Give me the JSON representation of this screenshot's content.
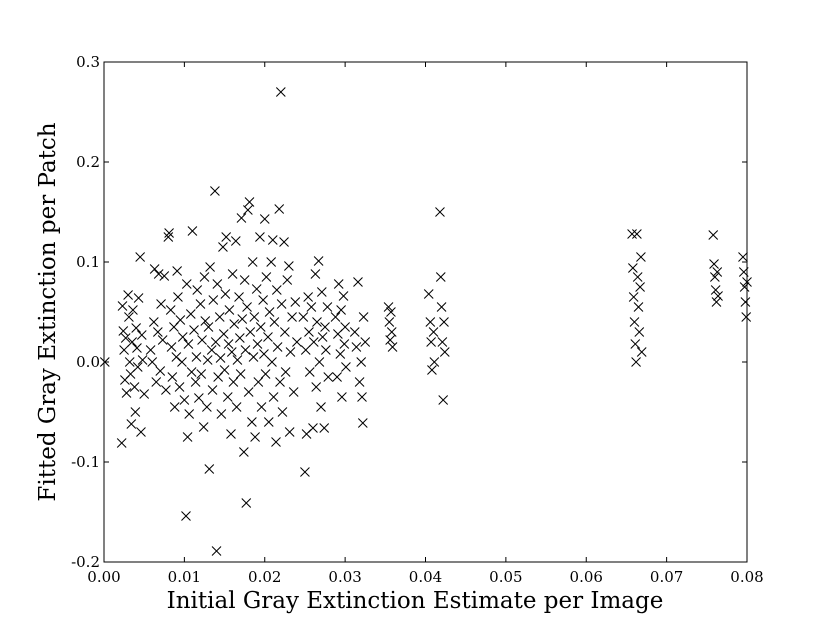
{
  "chart_data": {
    "type": "scatter",
    "title": "",
    "xlabel": "Initial Gray Extinction Estimate per Image",
    "ylabel": "Fitted Gray Extinction per Patch",
    "xlim": [
      0.0,
      0.08
    ],
    "ylim": [
      -0.2,
      0.3
    ],
    "x_ticks": [
      0.0,
      0.01,
      0.02,
      0.03,
      0.04,
      0.05,
      0.06,
      0.07,
      0.08
    ],
    "x_tick_labels": [
      "0.00",
      "0.01",
      "0.02",
      "0.03",
      "0.04",
      "0.05",
      "0.06",
      "0.07",
      "0.08"
    ],
    "y_ticks": [
      -0.2,
      -0.1,
      0.0,
      0.1,
      0.2,
      0.3
    ],
    "y_tick_labels": [
      "-0.2",
      "-0.1",
      "0.0",
      "0.1",
      "0.2",
      "0.3"
    ],
    "grid": false,
    "marker": "x",
    "marker_color": "#000000",
    "series": [
      {
        "points": [
          [
            0.0001,
            0.0
          ],
          [
            0.0022,
            -0.081
          ],
          [
            0.0023,
            0.056
          ],
          [
            0.0024,
            0.031
          ],
          [
            0.0025,
            0.012
          ],
          [
            0.0026,
            -0.018
          ],
          [
            0.0027,
            0.024
          ],
          [
            0.0028,
            -0.031
          ],
          [
            0.003,
            0.067
          ],
          [
            0.0031,
            0.045
          ],
          [
            0.0032,
            0.0
          ],
          [
            0.0033,
            -0.012
          ],
          [
            0.0034,
            -0.062
          ],
          [
            0.0035,
            0.02
          ],
          [
            0.0036,
            0.052
          ],
          [
            0.0038,
            -0.025
          ],
          [
            0.0039,
            -0.05
          ],
          [
            0.004,
            0.034
          ],
          [
            0.0041,
            0.014
          ],
          [
            0.0042,
            -0.005
          ],
          [
            0.0043,
            0.064
          ],
          [
            0.0045,
            0.105
          ],
          [
            0.0046,
            -0.07
          ],
          [
            0.0047,
            0.027
          ],
          [
            0.0048,
            0.002
          ],
          [
            0.005,
            -0.032
          ],
          [
            0.0058,
            0.012
          ],
          [
            0.006,
            0.0
          ],
          [
            0.0062,
            0.04
          ],
          [
            0.0063,
            0.093
          ],
          [
            0.0065,
            -0.02
          ],
          [
            0.0067,
            0.03
          ],
          [
            0.0068,
            0.088
          ],
          [
            0.007,
            -0.009
          ],
          [
            0.0071,
            0.058
          ],
          [
            0.0073,
            0.022
          ],
          [
            0.0075,
            0.086
          ],
          [
            0.0077,
            -0.028
          ],
          [
            0.008,
            0.125
          ],
          [
            0.0081,
            0.129
          ],
          [
            0.0083,
            0.052
          ],
          [
            0.0084,
            0.015
          ],
          [
            0.0085,
            -0.015
          ],
          [
            0.0087,
            0.035
          ],
          [
            0.0088,
            -0.045
          ],
          [
            0.009,
            0.005
          ],
          [
            0.0091,
            0.091
          ],
          [
            0.0092,
            0.065
          ],
          [
            0.0094,
            -0.025
          ],
          [
            0.0095,
            0.042
          ],
          [
            0.0097,
            0.0
          ],
          [
            0.0098,
            0.025
          ],
          [
            0.01,
            -0.038
          ],
          [
            0.0102,
            -0.154
          ],
          [
            0.0103,
            0.078
          ],
          [
            0.0104,
            -0.075
          ],
          [
            0.0105,
            0.018
          ],
          [
            0.0106,
            -0.052
          ],
          [
            0.0108,
            0.048
          ],
          [
            0.0109,
            -0.01
          ],
          [
            0.011,
            0.131
          ],
          [
            0.0112,
            0.032
          ],
          [
            0.0114,
            -0.02
          ],
          [
            0.0115,
            0.005
          ],
          [
            0.0116,
            0.072
          ],
          [
            0.0118,
            -0.036
          ],
          [
            0.012,
            0.058
          ],
          [
            0.0121,
            -0.012
          ],
          [
            0.0122,
            0.022
          ],
          [
            0.0124,
            -0.065
          ],
          [
            0.0125,
            0.085
          ],
          [
            0.0126,
            0.041
          ],
          [
            0.0128,
            -0.045
          ],
          [
            0.0129,
            0.002
          ],
          [
            0.013,
            0.035
          ],
          [
            0.0131,
            -0.107
          ],
          [
            0.0132,
            0.095
          ],
          [
            0.0134,
            0.012
          ],
          [
            0.0135,
            -0.028
          ],
          [
            0.0136,
            0.062
          ],
          [
            0.0138,
            0.171
          ],
          [
            0.0139,
            0.02
          ],
          [
            0.014,
            -0.189
          ],
          [
            0.0141,
            0.078
          ],
          [
            0.0142,
            -0.015
          ],
          [
            0.0144,
            0.045
          ],
          [
            0.0145,
            0.004
          ],
          [
            0.0146,
            -0.052
          ],
          [
            0.0148,
            0.115
          ],
          [
            0.0149,
            0.028
          ],
          [
            0.015,
            -0.008
          ],
          [
            0.0151,
            0.068
          ],
          [
            0.0152,
            0.125
          ],
          [
            0.0154,
            -0.035
          ],
          [
            0.0155,
            0.018
          ],
          [
            0.0156,
            0.052
          ],
          [
            0.0158,
            -0.072
          ],
          [
            0.0159,
            0.01
          ],
          [
            0.016,
            0.088
          ],
          [
            0.0161,
            -0.02
          ],
          [
            0.0162,
            0.038
          ],
          [
            0.0164,
            0.121
          ],
          [
            0.0165,
            -0.045
          ],
          [
            0.0166,
            0.002
          ],
          [
            0.0168,
            0.065
          ],
          [
            0.0169,
            0.024
          ],
          [
            0.017,
            -0.012
          ],
          [
            0.0171,
            0.144
          ],
          [
            0.0172,
            0.043
          ],
          [
            0.0174,
            -0.09
          ],
          [
            0.0175,
            0.082
          ],
          [
            0.0176,
            0.012
          ],
          [
            0.0177,
            -0.141
          ],
          [
            0.0178,
            0.055
          ],
          [
            0.0179,
            0.152
          ],
          [
            0.018,
            -0.03
          ],
          [
            0.0181,
            0.16
          ],
          [
            0.0182,
            0.03
          ],
          [
            0.0184,
            -0.06
          ],
          [
            0.0185,
            0.1
          ],
          [
            0.0186,
            0.005
          ],
          [
            0.0187,
            0.045
          ],
          [
            0.0188,
            -0.075
          ],
          [
            0.019,
            0.073
          ],
          [
            0.0191,
            0.018
          ],
          [
            0.0192,
            -0.02
          ],
          [
            0.0194,
            0.125
          ],
          [
            0.0195,
            0.035
          ],
          [
            0.0196,
            -0.045
          ],
          [
            0.0198,
            0.062
          ],
          [
            0.0199,
            0.008
          ],
          [
            0.02,
            0.143
          ],
          [
            0.0201,
            -0.012
          ],
          [
            0.0202,
            0.085
          ],
          [
            0.0204,
            0.025
          ],
          [
            0.0205,
            -0.06
          ],
          [
            0.0206,
            0.05
          ],
          [
            0.0208,
            0.1
          ],
          [
            0.0209,
            0.0
          ],
          [
            0.021,
            0.122
          ],
          [
            0.0211,
            -0.035
          ],
          [
            0.0212,
            0.04
          ],
          [
            0.0214,
            -0.08
          ],
          [
            0.0215,
            0.072
          ],
          [
            0.0216,
            0.015
          ],
          [
            0.0218,
            0.153
          ],
          [
            0.0219,
            -0.02
          ],
          [
            0.022,
            0.27
          ],
          [
            0.0221,
            0.058
          ],
          [
            0.0222,
            -0.05
          ],
          [
            0.0224,
            0.12
          ],
          [
            0.0225,
            0.03
          ],
          [
            0.0226,
            -0.01
          ],
          [
            0.0228,
            0.082
          ],
          [
            0.023,
            0.096
          ],
          [
            0.0231,
            -0.07
          ],
          [
            0.0232,
            0.01
          ],
          [
            0.0234,
            0.045
          ],
          [
            0.0236,
            -0.03
          ],
          [
            0.0238,
            0.06
          ],
          [
            0.024,
            0.02
          ],
          [
            0.0248,
            0.045
          ],
          [
            0.025,
            -0.11
          ],
          [
            0.0251,
            0.012
          ],
          [
            0.0252,
            -0.072
          ],
          [
            0.0254,
            0.065
          ],
          [
            0.0255,
            0.03
          ],
          [
            0.0256,
            -0.01
          ],
          [
            0.0258,
            0.055
          ],
          [
            0.026,
            -0.066
          ],
          [
            0.0261,
            0.02
          ],
          [
            0.0263,
            0.088
          ],
          [
            0.0264,
            -0.025
          ],
          [
            0.0265,
            0.04
          ],
          [
            0.0267,
            0.101
          ],
          [
            0.0268,
            0.0
          ],
          [
            0.027,
            -0.045
          ],
          [
            0.0271,
            0.07
          ],
          [
            0.0272,
            0.025
          ],
          [
            0.0274,
            -0.066
          ],
          [
            0.0275,
            0.035
          ],
          [
            0.0276,
            0.012
          ],
          [
            0.0278,
            0.055
          ],
          [
            0.0279,
            -0.015
          ],
          [
            0.0288,
            0.045
          ],
          [
            0.029,
            -0.015
          ],
          [
            0.0291,
            0.028
          ],
          [
            0.0292,
            0.078
          ],
          [
            0.0294,
            0.008
          ],
          [
            0.0295,
            0.052
          ],
          [
            0.0296,
            -0.035
          ],
          [
            0.0298,
            0.066
          ],
          [
            0.0299,
            0.018
          ],
          [
            0.03,
            0.035
          ],
          [
            0.0301,
            -0.005
          ],
          [
            0.0312,
            0.03
          ],
          [
            0.0314,
            0.015
          ],
          [
            0.0316,
            0.08
          ],
          [
            0.0318,
            -0.02
          ],
          [
            0.032,
            0.0
          ],
          [
            0.0321,
            -0.035
          ],
          [
            0.0322,
            -0.061
          ],
          [
            0.0323,
            0.045
          ],
          [
            0.0325,
            0.02
          ],
          [
            0.0354,
            0.055
          ],
          [
            0.0355,
            0.04
          ],
          [
            0.0356,
            0.022
          ],
          [
            0.0357,
            0.05
          ],
          [
            0.0358,
            0.03
          ],
          [
            0.0359,
            0.015
          ],
          [
            0.0404,
            0.068
          ],
          [
            0.0406,
            0.04
          ],
          [
            0.0407,
            0.02
          ],
          [
            0.0408,
            -0.008
          ],
          [
            0.041,
            0.03
          ],
          [
            0.0411,
            0.0
          ],
          [
            0.0418,
            0.15
          ],
          [
            0.0419,
            0.085
          ],
          [
            0.042,
            0.055
          ],
          [
            0.0421,
            0.02
          ],
          [
            0.0422,
            -0.038
          ],
          [
            0.0423,
            0.04
          ],
          [
            0.0424,
            0.01
          ],
          [
            0.0657,
            0.128
          ],
          [
            0.0658,
            0.094
          ],
          [
            0.0659,
            0.065
          ],
          [
            0.066,
            0.04
          ],
          [
            0.0661,
            0.018
          ],
          [
            0.0662,
            0.0
          ],
          [
            0.0663,
            0.128
          ],
          [
            0.0664,
            0.085
          ],
          [
            0.0665,
            0.055
          ],
          [
            0.0666,
            0.03
          ],
          [
            0.0667,
            0.075
          ],
          [
            0.0668,
            0.105
          ],
          [
            0.0669,
            0.01
          ],
          [
            0.0758,
            0.127
          ],
          [
            0.0759,
            0.098
          ],
          [
            0.076,
            0.085
          ],
          [
            0.0761,
            0.072
          ],
          [
            0.0762,
            0.06
          ],
          [
            0.0763,
            0.09
          ],
          [
            0.0764,
            0.066
          ],
          [
            0.0795,
            0.105
          ],
          [
            0.0796,
            0.09
          ],
          [
            0.0797,
            0.075
          ],
          [
            0.0798,
            0.06
          ],
          [
            0.0799,
            0.045
          ],
          [
            0.08,
            0.08
          ]
        ]
      }
    ]
  }
}
